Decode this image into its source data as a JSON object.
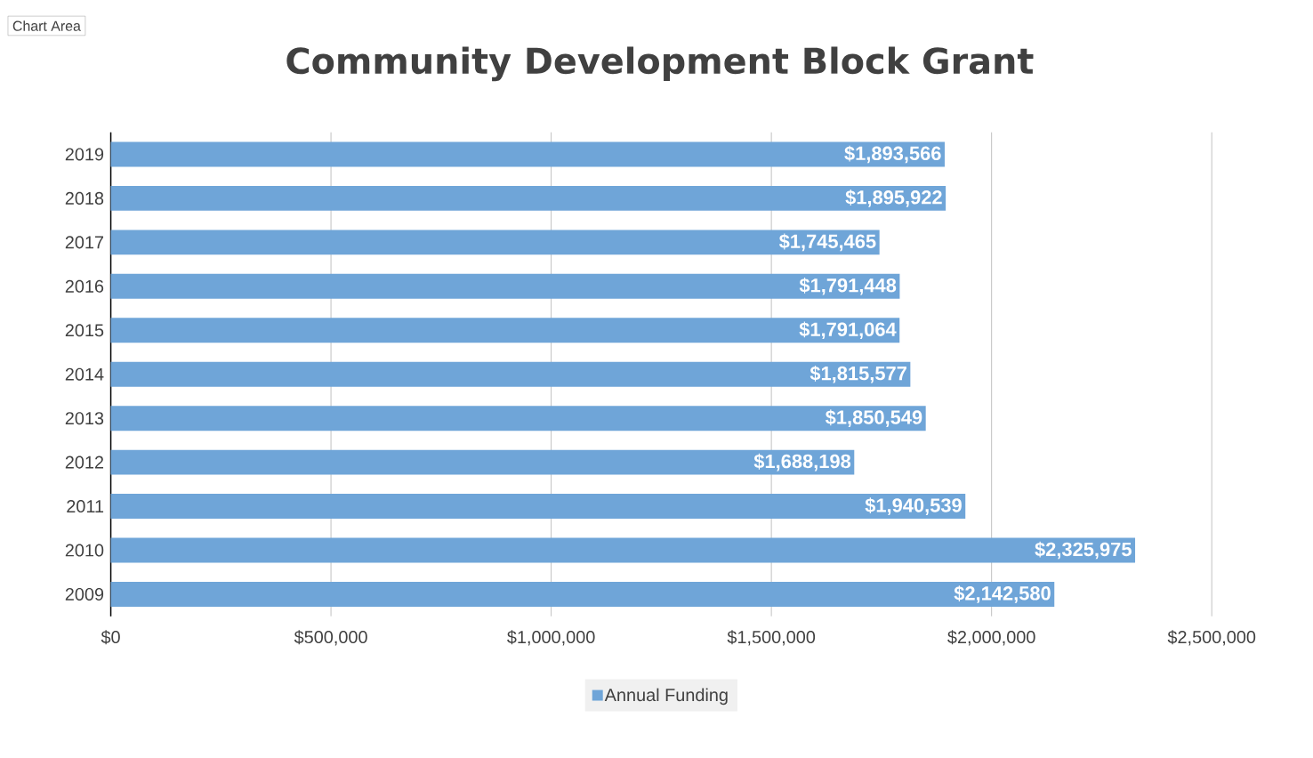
{
  "chart_data": {
    "type": "bar",
    "orientation": "horizontal",
    "title": "Community Development Block Grant",
    "annotations": [
      "Chart Area"
    ],
    "categories": [
      "2019",
      "2018",
      "2017",
      "2016",
      "2015",
      "2014",
      "2013",
      "2012",
      "2011",
      "2010",
      "2009"
    ],
    "series": [
      {
        "name": "Annual Funding",
        "color": "#6fa5d8",
        "values": [
          1893566,
          1895922,
          1745465,
          1791448,
          1791064,
          1815577,
          1850549,
          1688198,
          1940539,
          2325975,
          2142580
        ],
        "value_labels": [
          "$1,893,566",
          "$1,895,922",
          "$1,745,465",
          "$1,791,448",
          "$1,791,064",
          "$1,815,577",
          "$1,850,549",
          "$1,688,198",
          "$1,940,539",
          "$2,325,975",
          "$2,142,580"
        ]
      }
    ],
    "xlim": [
      0,
      2500000
    ],
    "xticks": [
      {
        "value": 0,
        "label": "$0"
      },
      {
        "value": 500000,
        "label": "$500,000"
      },
      {
        "value": 1000000,
        "label": "$1,000,000"
      },
      {
        "value": 1500000,
        "label": "$1,500,000"
      },
      {
        "value": 2000000,
        "label": "$2,000,000"
      },
      {
        "value": 2500000,
        "label": "$2,500,000"
      }
    ],
    "grid": "x",
    "legend": "bottom"
  }
}
